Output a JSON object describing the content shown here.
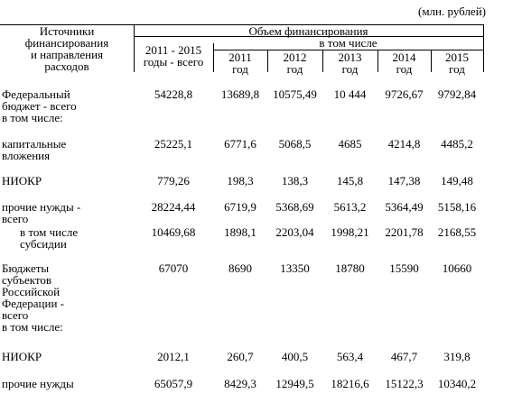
{
  "unit_note": "(млн. рублей)",
  "header": {
    "source": "Источники\nфинансирования\nи направления\nрасходов",
    "volume": "Объем финансирования",
    "total": "2011 - 2015\nгоды - всего",
    "including": "в том числе",
    "years": [
      "2011\nгод",
      "2012\nгод",
      "2013\nгод",
      "2014\nгод",
      "2015\nгод"
    ]
  },
  "rows": [
    {
      "label": "Федеральный\nбюджет - всего\n   в том числе:",
      "values": [
        "54228,8",
        "13689,8",
        "10575,49",
        "10 444",
        "9726,67",
        "9792,84"
      ]
    },
    {
      "label": "капитальные\nвложения",
      "values": [
        "25225,1",
        "6771,6",
        "5068,5",
        "4685",
        "4214,8",
        "4485,2"
      ]
    },
    {
      "label": "НИОКР",
      "values": [
        "779,26",
        "198,3",
        "138,3",
        "145,8",
        "147,38",
        "149,48"
      ]
    },
    {
      "label": "прочие нужды -\nвсего",
      "values": [
        "28224,44",
        "6719,9",
        "5368,69",
        "5613,2",
        "5364,49",
        "5158,16"
      ]
    },
    {
      "label": "в том числе\nсубсидии",
      "values": [
        "10469,68",
        "1898,1",
        "2203,04",
        "1998,21",
        "2201,78",
        "2168,55"
      ]
    },
    {
      "label": "Бюджеты\nсубъектов\nРоссийской\nФедерации -\nвсего\n   в том числе:",
      "values": [
        "67070",
        "8690",
        "13350",
        "18780",
        "15590",
        "10660"
      ]
    },
    {
      "label": "НИОКР",
      "values": [
        "2012,1",
        "260,7",
        "400,5",
        "563,4",
        "467,7",
        "319,8"
      ]
    },
    {
      "label": "прочие нужды",
      "values": [
        "65057,9",
        "8429,3",
        "12949,5",
        "18216,6",
        "15122,3",
        "10340,2"
      ]
    }
  ]
}
